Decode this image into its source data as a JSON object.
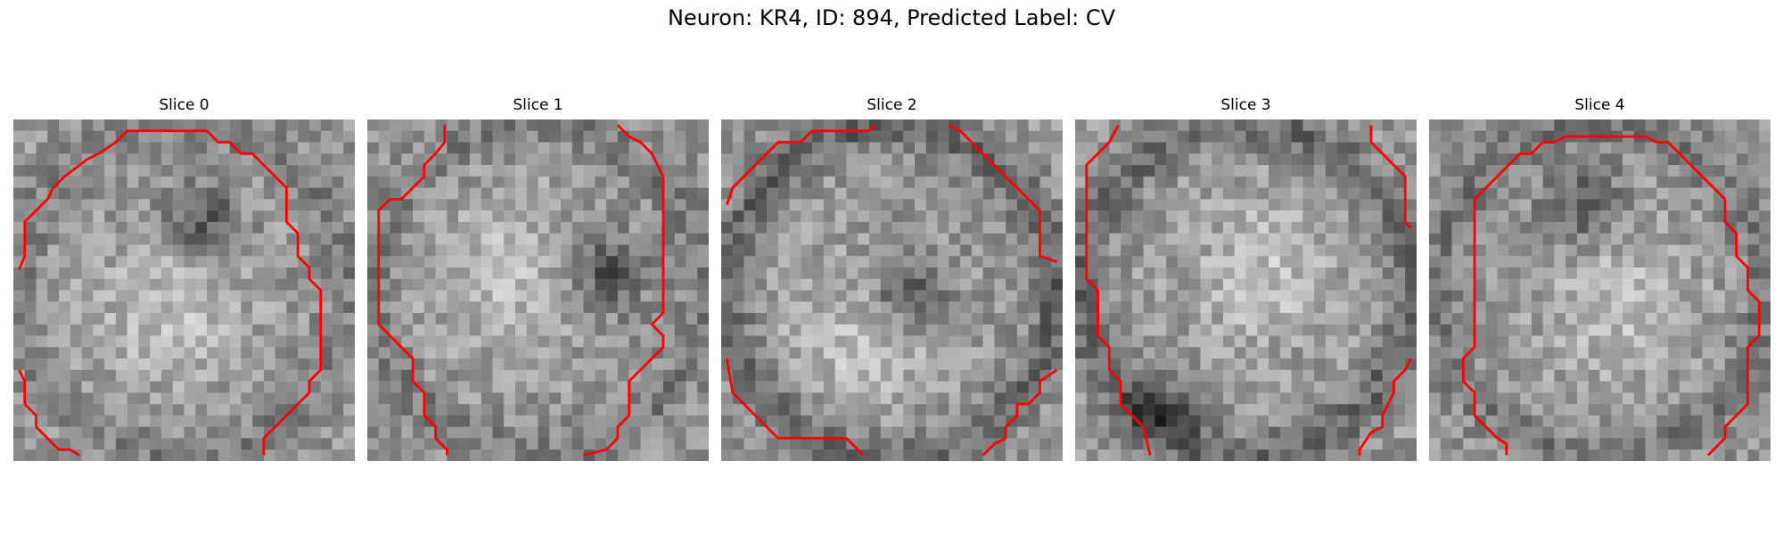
{
  "figure": {
    "title": "Neuron: KR4, ID: 894, Predicted Label: CV",
    "contour_color": "#ff0000",
    "colormap": "gray",
    "slices": [
      {
        "title": "Slice 0",
        "dark_center": [
          0.55,
          0.3
        ],
        "ring": 0.25,
        "bright_center": [
          0.45,
          0.55
        ],
        "seed": 11
      },
      {
        "title": "Slice 1",
        "dark_center": [
          0.7,
          0.45
        ],
        "ring": 0.3,
        "bright_center": [
          0.4,
          0.45
        ],
        "seed": 23
      },
      {
        "title": "Slice 2",
        "dark_center": [
          0.55,
          0.5
        ],
        "ring": 0.55,
        "bright_center": [
          0.4,
          0.65
        ],
        "seed": 37
      },
      {
        "title": "Slice 3",
        "dark_center": [
          0.25,
          0.85
        ],
        "ring": 0.5,
        "bright_center": [
          0.55,
          0.45
        ],
        "seed": 41
      },
      {
        "title": "Slice 4",
        "dark_center": [
          0.45,
          0.25
        ],
        "ring": 0.35,
        "bright_center": [
          0.55,
          0.55
        ],
        "seed": 53
      }
    ]
  }
}
